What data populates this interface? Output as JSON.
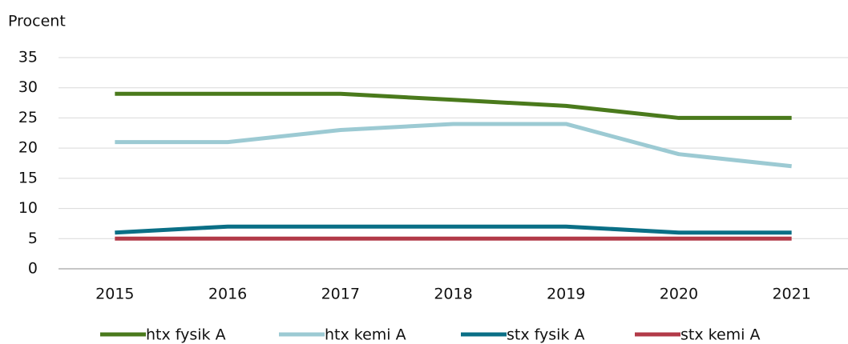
{
  "chart_data": {
    "type": "line",
    "ylabel": "Procent",
    "categories": [
      "2015",
      "2016",
      "2017",
      "2018",
      "2019",
      "2020",
      "2021"
    ],
    "series": [
      {
        "name": "htx fysik A",
        "color": "#4a7a1c",
        "values": [
          29,
          29,
          29,
          28,
          27,
          25,
          25
        ]
      },
      {
        "name": "htx kemi A",
        "color": "#9ccad3",
        "values": [
          21,
          21,
          23,
          24,
          24,
          19,
          17
        ]
      },
      {
        "name": "stx fysik A",
        "color": "#0a6f86",
        "values": [
          6,
          7,
          7,
          7,
          7,
          6,
          6
        ]
      },
      {
        "name": "stx kemi A",
        "color": "#b23a48",
        "values": [
          5,
          5,
          5,
          5,
          5,
          5,
          5
        ]
      }
    ],
    "ylim": [
      0,
      35
    ],
    "yticks": [
      0,
      5,
      10,
      15,
      20,
      25,
      30,
      35
    ],
    "grid": true,
    "legend": "bottom"
  }
}
